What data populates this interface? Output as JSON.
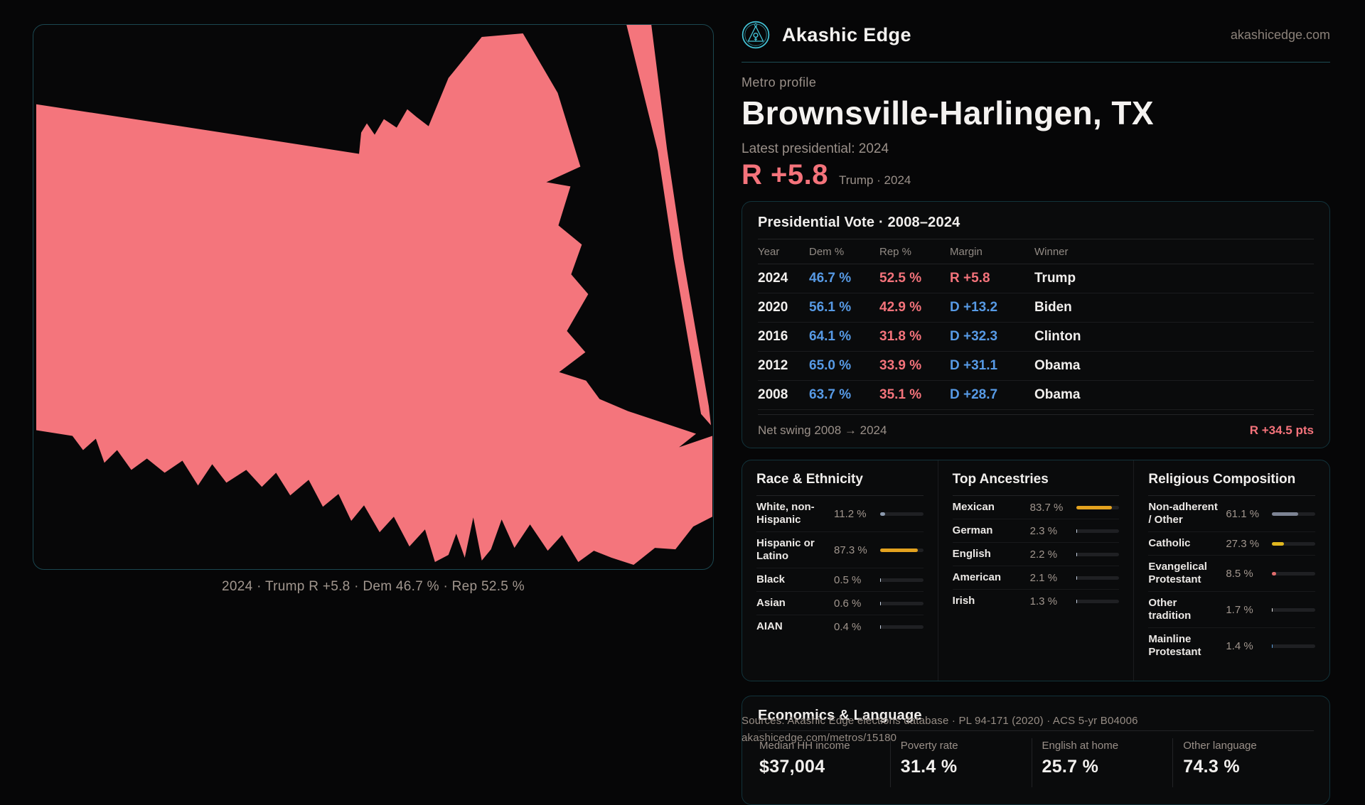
{
  "brand": {
    "name": "Akashic Edge",
    "domain": "akashicedge.com"
  },
  "profile": {
    "kicker": "Metro profile",
    "title": "Brownsville-Harlingen, TX",
    "latest_label": "Latest presidential: 2024",
    "headline_margin": "R +5.8",
    "headline_note": "Trump · 2024"
  },
  "map": {
    "caption": "2024 · Trump R +5.8 · Dem 46.7 % · Rep 52.5 %",
    "fill_color": "#f4757c"
  },
  "colors": {
    "accent_red": "#f4737b",
    "accent_blue": "#579ae5",
    "amber": "#e3a21f",
    "teal": "#43c3d6"
  },
  "vote_card": {
    "title": "Presidential Vote · 2008–2024",
    "columns": [
      "Year",
      "Dem %",
      "Rep %",
      "Margin",
      "Winner"
    ],
    "rows": [
      {
        "year": "2024",
        "dem": "46.7 %",
        "rep": "52.5 %",
        "margin": "R +5.8",
        "margin_color": "#f4737b",
        "winner": "Trump"
      },
      {
        "year": "2020",
        "dem": "56.1 %",
        "rep": "42.9 %",
        "margin": "D +13.2",
        "margin_color": "#579ae5",
        "winner": "Biden"
      },
      {
        "year": "2016",
        "dem": "64.1 %",
        "rep": "31.8 %",
        "margin": "D +32.3",
        "margin_color": "#579ae5",
        "winner": "Clinton"
      },
      {
        "year": "2012",
        "dem": "65.0 %",
        "rep": "33.9 %",
        "margin": "D +31.1",
        "margin_color": "#579ae5",
        "winner": "Obama"
      },
      {
        "year": "2008",
        "dem": "63.7 %",
        "rep": "35.1 %",
        "margin": "D +28.7",
        "margin_color": "#579ae5",
        "winner": "Obama"
      }
    ],
    "swing_label": "Net swing 2008 → 2024",
    "swing_value": "R +34.5 pts"
  },
  "demographics": {
    "sections": [
      {
        "title": "Race & Ethnicity",
        "items": [
          {
            "label": "White, non-Hispanic",
            "value": "11.2 %",
            "pct": 11.2,
            "color": "#8b99ad"
          },
          {
            "label": "Hispanic or Latino",
            "value": "87.3 %",
            "pct": 87.3,
            "color": "#e3a21f"
          },
          {
            "label": "Black",
            "value": "0.5 %",
            "pct": 0.5,
            "color": "#c7d3e2"
          },
          {
            "label": "Asian",
            "value": "0.6 %",
            "pct": 0.6,
            "color": "#c7d3e2"
          },
          {
            "label": "AIAN",
            "value": "0.4 %",
            "pct": 0.4,
            "color": "#c7d3e2"
          }
        ]
      },
      {
        "title": "Top Ancestries",
        "items": [
          {
            "label": "Mexican",
            "value": "83.7 %",
            "pct": 83.7,
            "color": "#e3a21f"
          },
          {
            "label": "German",
            "value": "2.3 %",
            "pct": 2.3,
            "color": "#c7d3e2"
          },
          {
            "label": "English",
            "value": "2.2 %",
            "pct": 2.2,
            "color": "#c7d3e2"
          },
          {
            "label": "American",
            "value": "2.1 %",
            "pct": 2.1,
            "color": "#c7d3e2"
          },
          {
            "label": "Irish",
            "value": "1.3 %",
            "pct": 1.3,
            "color": "#c7d3e2"
          }
        ]
      },
      {
        "title": "Religious Composition",
        "items": [
          {
            "label": "Non-adherent / Other",
            "value": "61.1 %",
            "pct": 61.1,
            "color": "#7d8494"
          },
          {
            "label": "Catholic",
            "value": "27.3 %",
            "pct": 27.3,
            "color": "#e0b71f"
          },
          {
            "label": "Evangelical Protestant",
            "value": "8.5 %",
            "pct": 8.5,
            "color": "#e06c6c"
          },
          {
            "label": "Other tradition",
            "value": "1.7 %",
            "pct": 1.7,
            "color": "#e8e6e3"
          },
          {
            "label": "Mainline Protestant",
            "value": "1.4 %",
            "pct": 1.4,
            "color": "#5aa0e0"
          }
        ]
      }
    ]
  },
  "economics": {
    "title": "Economics & Language",
    "stats": [
      {
        "label": "Median HH income",
        "value": "$37,004"
      },
      {
        "label": "Poverty rate",
        "value": "31.4 %"
      },
      {
        "label": "English at home",
        "value": "25.7 %"
      },
      {
        "label": "Other language",
        "value": "74.3 %"
      }
    ]
  },
  "footer": {
    "sources": "Sources: Akashic Edge elections database · PL 94-171 (2020) · ACS 5-yr B04006",
    "permalink": "akashicedge.com/metros/15180"
  }
}
